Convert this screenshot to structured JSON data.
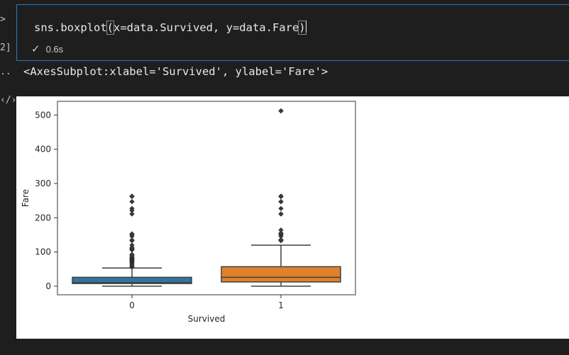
{
  "gutter": {
    "input_prompt": ">",
    "exec_count": "2]",
    "output_prompt": "..",
    "plot_prompt": "‹/›"
  },
  "cell": {
    "code_before": "sns.boxplot",
    "paren_open": "(",
    "code_args": "x=data.Survived, y=data.Fare",
    "paren_close": ")",
    "status_icon": "check-icon",
    "duration": "0.6s"
  },
  "output": {
    "repr_text": "<AxesSubplot:xlabel='Survived', ylabel='Fare'>"
  },
  "colors": {
    "background": "#1e1e1e",
    "focus_border": "#2b79c4",
    "box_0": "#3274a1",
    "box_1": "#e1812c",
    "lines": "#3f3f3f"
  },
  "chart_data": {
    "type": "box",
    "xlabel": "Survived",
    "ylabel": "Fare",
    "categories": [
      "0",
      "1"
    ],
    "ylim": [
      -25,
      540
    ],
    "yticks": [
      0,
      100,
      200,
      300,
      400,
      500
    ],
    "boxes": [
      {
        "category": "0",
        "whisker_low": 0,
        "q1": 7.9,
        "median": 10.5,
        "q3": 26,
        "whisker_high": 53,
        "outliers": [
          56,
          57,
          61,
          65,
          69,
          71,
          73,
          76,
          78,
          79,
          80,
          82,
          83,
          86,
          90,
          93,
          106,
          108,
          110,
          113,
          120,
          133,
          135,
          146,
          151,
          153,
          211,
          221,
          227,
          247,
          262,
          263
        ]
      },
      {
        "category": "1",
        "whisker_low": 0,
        "q1": 12.5,
        "median": 26,
        "q3": 57,
        "whisker_high": 120,
        "outliers": [
          133,
          134,
          135,
          136,
          146,
          151,
          153,
          155,
          164,
          211,
          211,
          227,
          247,
          247,
          262,
          262,
          263,
          263,
          512,
          512
        ]
      }
    ]
  }
}
